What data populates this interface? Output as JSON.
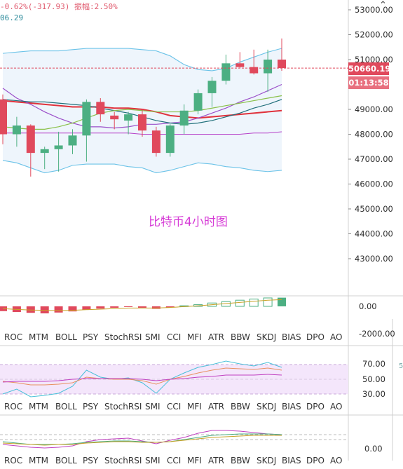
{
  "header": {
    "info_line": "-0.62%(-317.93)  振幅:2.50%",
    "ma_line": "06.29"
  },
  "watermark": "比特币4小时图",
  "price_axis": {
    "ticks": [
      "53000.00",
      "52000.00",
      "51000.00",
      "49000.00",
      "48000.00",
      "47000.00",
      "46000.00",
      "45000.00",
      "44000.00",
      "43000.00"
    ],
    "current_price": "50660.19",
    "countdown": "01:13:58"
  },
  "indicator_tabs": [
    "ROC",
    "MTM",
    "BOLL",
    "PSY",
    "StochRSI",
    "SMI",
    "CCI",
    "MFI",
    "ATR",
    "BBW",
    "SKDJ",
    "BIAS",
    "DPO",
    "AO"
  ],
  "macd_axis": [
    "0.00",
    "-2000.00"
  ],
  "kdj_axis": [
    "70.00",
    "50.00",
    "30.00"
  ],
  "bottom_axis": [
    "0.00"
  ],
  "edge_label": "5",
  "colors": {
    "up": "#4caf82",
    "down": "#e0495c",
    "boll": "#6cc3e8",
    "ma_red": "#e0323c",
    "ma_purple": "#9b4fc9",
    "ma_teal": "#1f6f7a",
    "ma_green": "#8ac04a",
    "ma_magenta": "#b640c8"
  },
  "chart_data": {
    "type": "candlestick",
    "interval": "4h",
    "candles": [
      {
        "o": 49400,
        "h": 49600,
        "l": 47600,
        "c": 48000
      },
      {
        "o": 48000,
        "h": 48700,
        "l": 47500,
        "c": 48350
      },
      {
        "o": 48350,
        "h": 48400,
        "l": 46300,
        "c": 47250
      },
      {
        "o": 47250,
        "h": 47500,
        "l": 46600,
        "c": 47400
      },
      {
        "o": 47400,
        "h": 48100,
        "l": 46500,
        "c": 47550
      },
      {
        "o": 47550,
        "h": 48200,
        "l": 47200,
        "c": 47950
      },
      {
        "o": 47950,
        "h": 49400,
        "l": 46900,
        "c": 49300
      },
      {
        "o": 49300,
        "h": 49450,
        "l": 48500,
        "c": 48800
      },
      {
        "o": 48750,
        "h": 48900,
        "l": 48200,
        "c": 48600
      },
      {
        "o": 48550,
        "h": 48900,
        "l": 48000,
        "c": 48800
      },
      {
        "o": 48800,
        "h": 49000,
        "l": 47900,
        "c": 48150
      },
      {
        "o": 48150,
        "h": 48300,
        "l": 47100,
        "c": 47250
      },
      {
        "o": 47250,
        "h": 48400,
        "l": 47100,
        "c": 48350
      },
      {
        "o": 48350,
        "h": 49200,
        "l": 48000,
        "c": 48950
      },
      {
        "o": 48950,
        "h": 49800,
        "l": 48800,
        "c": 49650
      },
      {
        "o": 49650,
        "h": 50300,
        "l": 49100,
        "c": 50150
      },
      {
        "o": 50150,
        "h": 51200,
        "l": 50000,
        "c": 50850
      },
      {
        "o": 50850,
        "h": 51300,
        "l": 50650,
        "c": 50700
      },
      {
        "o": 50700,
        "h": 51400,
        "l": 50400,
        "c": 50450
      },
      {
        "o": 50450,
        "h": 51400,
        "l": 49700,
        "c": 51000
      },
      {
        "o": 51000,
        "h": 51850,
        "l": 50550,
        "c": 50660
      }
    ]
  }
}
